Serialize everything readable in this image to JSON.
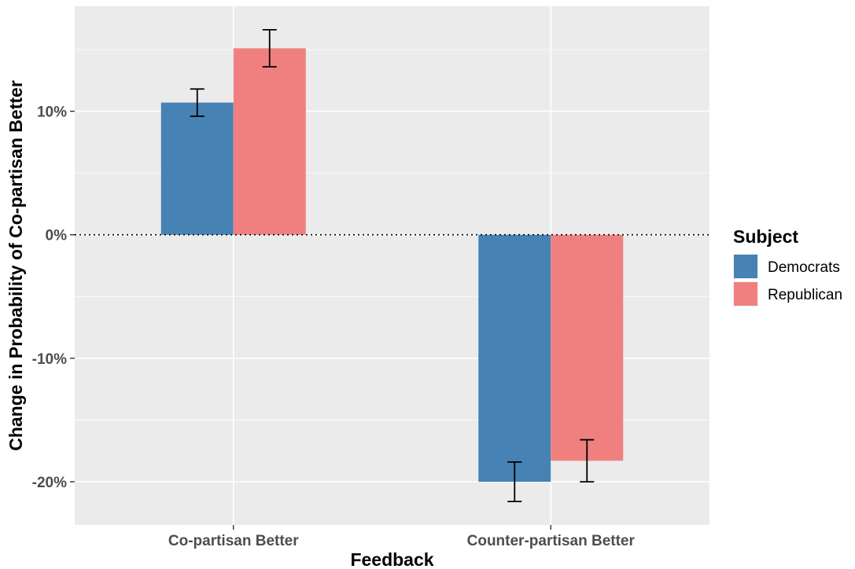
{
  "chart_data": {
    "type": "bar",
    "title": "",
    "xlabel": "Feedback",
    "ylabel": "Change in Probability of Co-partisan Better",
    "categories": [
      "Co-partisan Better",
      "Counter-partisan Better"
    ],
    "series": [
      {
        "name": "Democrats",
        "color": "#4682B4",
        "values": [
          10.7,
          -20.0
        ],
        "error_low": [
          9.6,
          -21.6
        ],
        "error_high": [
          11.8,
          -18.4
        ]
      },
      {
        "name": "Republican",
        "color": "#F08080",
        "values": [
          15.1,
          -18.3
        ],
        "error_low": [
          13.6,
          -20.0
        ],
        "error_high": [
          16.6,
          -16.6
        ]
      }
    ],
    "ylim": [
      -23.5,
      18.5
    ],
    "yticks": [
      -20,
      -10,
      0,
      10
    ],
    "ytick_labels": [
      "-20%",
      "-10%",
      "0%",
      "10%"
    ],
    "y_format": "percent",
    "grid": true,
    "zero_reference_line": "dotted",
    "panel_background": "#EBEBEB",
    "legend": {
      "title": "Subject",
      "position": "right"
    }
  }
}
